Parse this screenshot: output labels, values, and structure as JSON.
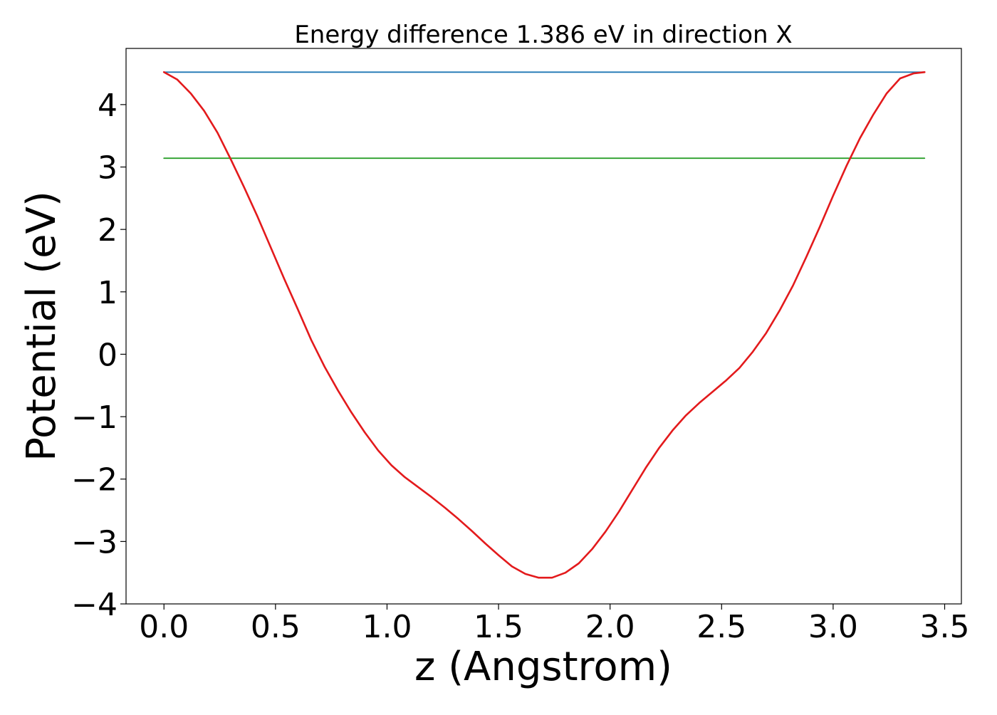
{
  "chart_data": {
    "type": "line",
    "title": "Energy difference 1.386 eV in direction X",
    "xlabel": "z (Angstrom)",
    "ylabel": "Potential (eV)",
    "xlim": [
      -0.17,
      3.575
    ],
    "ylim": [
      -4.0,
      4.9
    ],
    "grid": false,
    "x_ticks": [
      0.0,
      0.5,
      1.0,
      1.5,
      2.0,
      2.5,
      3.0,
      3.5
    ],
    "x_tick_labels": [
      "0.0",
      "0.5",
      "1.0",
      "1.5",
      "2.0",
      "2.5",
      "3.0",
      "3.5"
    ],
    "y_ticks": [
      4,
      3,
      2,
      1,
      0,
      -1,
      -2,
      -3,
      -4
    ],
    "y_tick_labels": [
      "4",
      "3",
      "2",
      "1",
      "0",
      "−1",
      "−2",
      "−3",
      "−4"
    ],
    "series": [
      {
        "color": "#1f77b4",
        "x": [
          0.0,
          3.41
        ],
        "y": [
          4.52,
          4.52
        ]
      },
      {
        "color": "#2ca02c",
        "x": [
          0.0,
          3.41
        ],
        "y": [
          3.14,
          3.14
        ]
      },
      {
        "color": "#e31a1c",
        "x": [
          0.0,
          0.06,
          0.12,
          0.18,
          0.24,
          0.3,
          0.36,
          0.42,
          0.48,
          0.54,
          0.6,
          0.66,
          0.72,
          0.78,
          0.84,
          0.9,
          0.96,
          1.02,
          1.08,
          1.14,
          1.2,
          1.26,
          1.32,
          1.38,
          1.44,
          1.5,
          1.56,
          1.62,
          1.68,
          1.74,
          1.8,
          1.86,
          1.92,
          1.98,
          2.04,
          2.1,
          2.16,
          2.22,
          2.28,
          2.34,
          2.4,
          2.46,
          2.52,
          2.58,
          2.64,
          2.7,
          2.76,
          2.82,
          2.88,
          2.94,
          3.0,
          3.06,
          3.12,
          3.18,
          3.24,
          3.3,
          3.36,
          3.41
        ],
        "y": [
          4.52,
          4.4,
          4.18,
          3.9,
          3.55,
          3.12,
          2.67,
          2.2,
          1.7,
          1.2,
          0.72,
          0.23,
          -0.2,
          -0.58,
          -0.93,
          -1.25,
          -1.54,
          -1.78,
          -1.97,
          -2.13,
          -2.29,
          -2.46,
          -2.64,
          -2.83,
          -3.03,
          -3.22,
          -3.4,
          -3.52,
          -3.58,
          -3.58,
          -3.5,
          -3.35,
          -3.12,
          -2.84,
          -2.52,
          -2.17,
          -1.82,
          -1.5,
          -1.22,
          -0.98,
          -0.78,
          -0.6,
          -0.42,
          -0.22,
          0.04,
          0.34,
          0.7,
          1.1,
          1.56,
          2.04,
          2.54,
          3.02,
          3.46,
          3.84,
          4.18,
          4.42,
          4.5,
          4.52
        ]
      }
    ]
  }
}
